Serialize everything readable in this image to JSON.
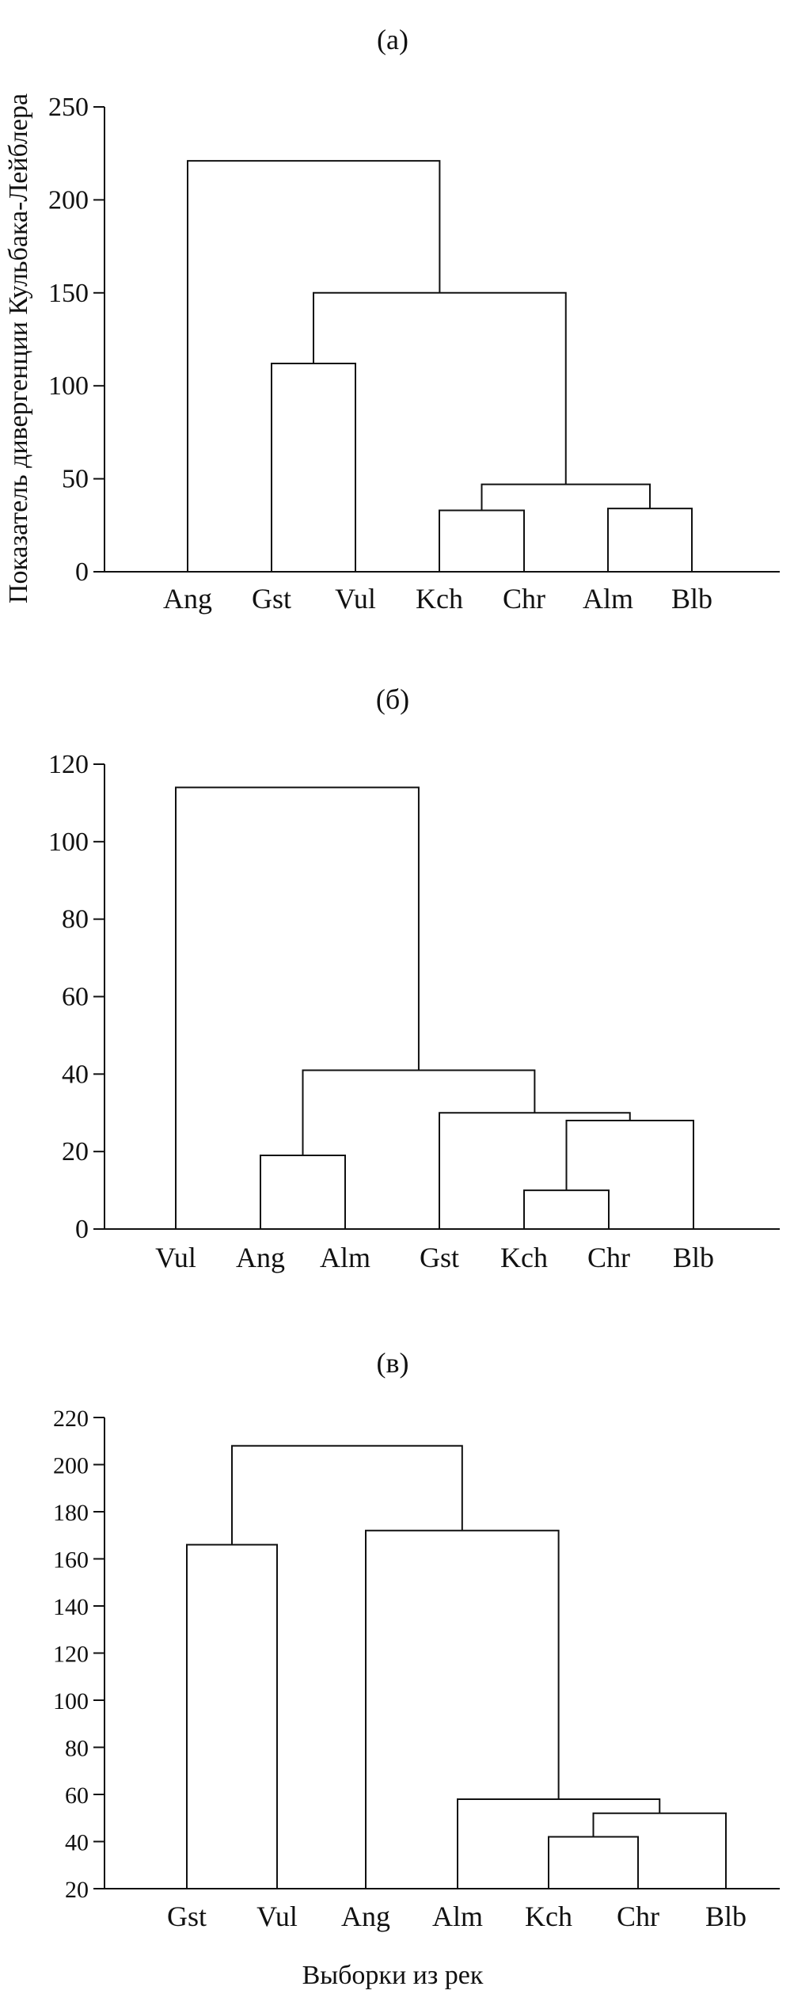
{
  "chart_data": [
    {
      "type": "dendrogram",
      "title": "(а)",
      "ylabel": "Показатель дивергенции Кульбака-Лейблера",
      "xlabel": "",
      "ylim": [
        0,
        250
      ],
      "yticks": [
        0,
        50,
        100,
        150,
        200,
        250
      ],
      "leaves": [
        "Ang",
        "Gst",
        "Vul",
        "Kch",
        "Chr",
        "Alm",
        "Blb"
      ],
      "merges": [
        {
          "clusters": [
            [
              "Kch"
            ],
            [
              "Chr"
            ]
          ],
          "height": 33
        },
        {
          "clusters": [
            [
              "Alm"
            ],
            [
              "Blb"
            ]
          ],
          "height": 34
        },
        {
          "clusters": [
            [
              "Kch",
              "Chr"
            ],
            [
              "Alm",
              "Blb"
            ]
          ],
          "height": 47
        },
        {
          "clusters": [
            [
              "Gst"
            ],
            [
              "Vul"
            ]
          ],
          "height": 112
        },
        {
          "clusters": [
            [
              "Gst",
              "Vul"
            ],
            [
              "Kch",
              "Chr",
              "Alm",
              "Blb"
            ]
          ],
          "height": 150
        },
        {
          "clusters": [
            [
              "Ang"
            ],
            [
              "Gst",
              "Vul",
              "Kch",
              "Chr",
              "Alm",
              "Blb"
            ]
          ],
          "height": 221
        }
      ]
    },
    {
      "type": "dendrogram",
      "title": "(б)",
      "ylabel": "",
      "xlabel": "",
      "ylim": [
        0,
        120
      ],
      "yticks": [
        0,
        20,
        40,
        60,
        80,
        100,
        120
      ],
      "leaves": [
        "Vul",
        "Ang",
        "Alm",
        "Gst",
        "Kch",
        "Chr",
        "Blb"
      ],
      "merges": [
        {
          "clusters": [
            [
              "Kch"
            ],
            [
              "Chr"
            ]
          ],
          "height": 10
        },
        {
          "clusters": [
            [
              "Ang"
            ],
            [
              "Alm"
            ]
          ],
          "height": 19
        },
        {
          "clusters": [
            [
              "Kch",
              "Chr"
            ],
            [
              "Blb"
            ]
          ],
          "height": 28
        },
        {
          "clusters": [
            [
              "Gst"
            ],
            [
              "Kch",
              "Chr",
              "Blb"
            ]
          ],
          "height": 30
        },
        {
          "clusters": [
            [
              "Ang",
              "Alm"
            ],
            [
              "Gst",
              "Kch",
              "Chr",
              "Blb"
            ]
          ],
          "height": 41
        },
        {
          "clusters": [
            [
              "Vul"
            ],
            [
              "Ang",
              "Alm",
              "Gst",
              "Kch",
              "Chr",
              "Blb"
            ]
          ],
          "height": 114
        }
      ]
    },
    {
      "type": "dendrogram",
      "title": "(в)",
      "ylabel": "",
      "xlabel": "Выборки из рек",
      "ylim": [
        20,
        220
      ],
      "yticks": [
        20,
        40,
        60,
        80,
        100,
        120,
        140,
        160,
        180,
        200,
        220
      ],
      "leaves": [
        "Gst",
        "Vul",
        "Ang",
        "Alm",
        "Kch",
        "Chr",
        "Blb"
      ],
      "merges": [
        {
          "clusters": [
            [
              "Kch"
            ],
            [
              "Chr"
            ]
          ],
          "height": 42
        },
        {
          "clusters": [
            [
              "Kch",
              "Chr"
            ],
            [
              "Blb"
            ]
          ],
          "height": 52
        },
        {
          "clusters": [
            [
              "Alm"
            ],
            [
              "Kch",
              "Chr",
              "Blb"
            ]
          ],
          "height": 58
        },
        {
          "clusters": [
            [
              "Gst"
            ],
            [
              "Vul"
            ]
          ],
          "height": 166
        },
        {
          "clusters": [
            [
              "Ang"
            ],
            [
              "Alm",
              "Kch",
              "Chr",
              "Blb"
            ]
          ],
          "height": 172
        },
        {
          "clusters": [
            [
              "Gst",
              "Vul"
            ],
            [
              "Ang",
              "Alm",
              "Kch",
              "Chr",
              "Blb"
            ]
          ],
          "height": 208
        }
      ]
    }
  ]
}
